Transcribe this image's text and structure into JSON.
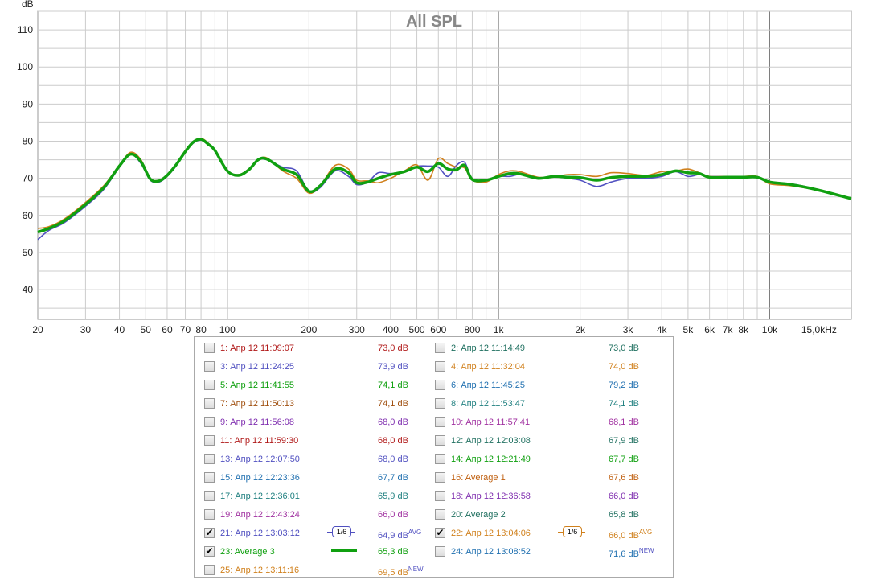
{
  "chart_data": {
    "type": "line",
    "title": "All SPL",
    "ylabel": "dB",
    "xscale": "log",
    "xlim": [
      20,
      20000
    ],
    "ylim": [
      32,
      115
    ],
    "grid": true,
    "x_ticks": [
      {
        "v": 20,
        "t": "20"
      },
      {
        "v": 30,
        "t": "30"
      },
      {
        "v": 40,
        "t": "40"
      },
      {
        "v": 50,
        "t": "50"
      },
      {
        "v": 60,
        "t": "60"
      },
      {
        "v": 70,
        "t": "70"
      },
      {
        "v": 80,
        "t": "80"
      },
      {
        "v": 100,
        "t": "100"
      },
      {
        "v": 200,
        "t": "200"
      },
      {
        "v": 300,
        "t": "300"
      },
      {
        "v": 400,
        "t": "400"
      },
      {
        "v": 500,
        "t": "500"
      },
      {
        "v": 600,
        "t": "600"
      },
      {
        "v": 800,
        "t": "800"
      },
      {
        "v": 1000,
        "t": "1k"
      },
      {
        "v": 2000,
        "t": "2k"
      },
      {
        "v": 3000,
        "t": "3k"
      },
      {
        "v": 4000,
        "t": "4k"
      },
      {
        "v": 5000,
        "t": "5k"
      },
      {
        "v": 6000,
        "t": "6k"
      },
      {
        "v": 7000,
        "t": "7k"
      },
      {
        "v": 8000,
        "t": "8k"
      },
      {
        "v": 10000,
        "t": "10k"
      },
      {
        "v": 15000,
        "t": "15,0kHz"
      }
    ],
    "y_ticks": [
      40,
      50,
      60,
      70,
      80,
      90,
      100,
      110
    ],
    "series": [
      {
        "name": "21: Апр 12 13:03:12",
        "color": "#5050c0",
        "x": [
          20,
          22,
          25,
          30,
          35,
          40,
          44,
          48,
          52,
          56,
          60,
          65,
          70,
          75,
          80,
          85,
          90,
          100,
          110,
          120,
          130,
          140,
          160,
          180,
          200,
          220,
          250,
          280,
          300,
          330,
          360,
          400,
          450,
          500,
          550,
          600,
          650,
          700,
          750,
          800,
          900,
          1000,
          1100,
          1200,
          1400,
          1600,
          1800,
          2000,
          2300,
          2600,
          3000,
          3500,
          4000,
          4500,
          5000,
          5500,
          6000,
          7000,
          8000,
          9000,
          10000,
          12000,
          15000,
          20000
        ],
        "y": [
          53.5,
          56,
          58,
          62.5,
          67,
          73,
          76.5,
          74,
          69.5,
          69,
          70.5,
          73.5,
          77,
          79.5,
          80.3,
          79,
          77.5,
          72,
          71,
          72.5,
          75,
          75,
          73,
          72,
          66.5,
          67.5,
          72,
          70.5,
          68.3,
          69,
          71.5,
          71.3,
          71.7,
          73.2,
          73.3,
          73,
          70.5,
          73.5,
          74.3,
          70,
          69.5,
          70.5,
          70.5,
          71,
          70,
          70.5,
          70,
          69.5,
          67.8,
          69,
          70,
          70,
          70.5,
          71.8,
          70.5,
          71,
          70.5,
          70.5,
          70.3,
          70.3,
          69,
          68.5,
          67,
          64.5
        ]
      },
      {
        "name": "22: Апр 12 13:04:06",
        "color": "#d0801c",
        "x": [
          20,
          22,
          25,
          30,
          35,
          40,
          44,
          48,
          52,
          56,
          60,
          65,
          70,
          75,
          80,
          85,
          90,
          100,
          110,
          120,
          130,
          140,
          160,
          180,
          200,
          220,
          250,
          280,
          300,
          330,
          360,
          400,
          450,
          500,
          550,
          600,
          650,
          700,
          750,
          800,
          900,
          1000,
          1100,
          1200,
          1400,
          1600,
          1800,
          2000,
          2300,
          2600,
          3000,
          3500,
          4000,
          4500,
          5000,
          5500,
          6000,
          7000,
          8000,
          9000,
          10000,
          12000,
          15000,
          20000
        ],
        "y": [
          56.5,
          57,
          59,
          63.5,
          68,
          73.5,
          77,
          75,
          70,
          69.5,
          71,
          74,
          77.5,
          80,
          80.8,
          79.5,
          77.5,
          72,
          71,
          72.5,
          75,
          75.5,
          72,
          70,
          66,
          68,
          73.5,
          72.5,
          69.5,
          69.3,
          68.8,
          70,
          72,
          73.6,
          69.5,
          75.3,
          74,
          73,
          72.8,
          69.5,
          69,
          71,
          72,
          71.8,
          70.3,
          70.5,
          71,
          71,
          70.5,
          71.5,
          71.3,
          70.8,
          71.8,
          72,
          72.5,
          71.5,
          70.5,
          70.5,
          70.5,
          70.5,
          68.5,
          68,
          66.8,
          64.5
        ]
      },
      {
        "name": "23: Average 3",
        "color": "#10a010",
        "x": [
          20,
          22,
          25,
          30,
          35,
          40,
          44,
          48,
          52,
          56,
          60,
          65,
          70,
          75,
          80,
          85,
          90,
          100,
          110,
          120,
          130,
          140,
          160,
          180,
          200,
          220,
          250,
          280,
          300,
          330,
          360,
          400,
          450,
          500,
          550,
          600,
          650,
          700,
          750,
          800,
          900,
          1000,
          1100,
          1200,
          1400,
          1600,
          1800,
          2000,
          2300,
          2600,
          3000,
          3500,
          4000,
          4500,
          5000,
          5500,
          6000,
          7000,
          8000,
          9000,
          10000,
          12000,
          15000,
          20000
        ],
        "y": [
          55.5,
          56.5,
          58.5,
          63,
          67.5,
          73.3,
          76.5,
          74.5,
          69.8,
          69.3,
          70.8,
          73.8,
          77.2,
          79.8,
          80.5,
          79.2,
          77.5,
          72,
          70.8,
          72.3,
          75,
          75.2,
          72.5,
          71,
          66.5,
          68,
          72.5,
          71.5,
          68.8,
          69,
          70,
          71,
          71.8,
          73,
          71.8,
          74,
          72.5,
          72.3,
          73.5,
          69.7,
          69.5,
          70.5,
          71.3,
          71.2,
          70,
          70.5,
          70.3,
          70.2,
          69.5,
          70.2,
          70.5,
          70.5,
          71,
          72,
          71.5,
          71.3,
          70.3,
          70.3,
          70.3,
          70.3,
          69,
          68.3,
          66.9,
          64.5
        ]
      }
    ]
  },
  "legend": {
    "items": [
      {
        "name": "1: Апр 12 11:09:07",
        "value": "73,0 dB",
        "color": "#b01818",
        "checked": false,
        "badge": "",
        "symbol": ""
      },
      {
        "name": "2: Апр 12 11:14:49",
        "value": "73,0 dB",
        "color": "#207060",
        "checked": false,
        "badge": "",
        "symbol": ""
      },
      {
        "name": "3: Апр 12 11:24:25",
        "value": "73,9 dB",
        "color": "#5050c0",
        "checked": false,
        "badge": "",
        "symbol": ""
      },
      {
        "name": "4: Апр 12 11:32:04",
        "value": "74,0 dB",
        "color": "#d0801c",
        "checked": false,
        "badge": "",
        "symbol": ""
      },
      {
        "name": "5: Апр 12 11:41:55",
        "value": "74,1 dB",
        "color": "#10a010",
        "checked": false,
        "badge": "",
        "symbol": ""
      },
      {
        "name": "6: Апр 12 11:45:25",
        "value": "79,2 dB",
        "color": "#2070b0",
        "checked": false,
        "badge": "",
        "symbol": ""
      },
      {
        "name": "7: Апр 12 11:50:13",
        "value": "74,1 dB",
        "color": "#a05010",
        "checked": false,
        "badge": "",
        "symbol": ""
      },
      {
        "name": "8: Апр 12 11:53:47",
        "value": "74,1 dB",
        "color": "#208080",
        "checked": false,
        "badge": "",
        "symbol": ""
      },
      {
        "name": "9: Апр 12 11:56:08",
        "value": "68,0 dB",
        "color": "#8030b0",
        "checked": false,
        "badge": "",
        "symbol": ""
      },
      {
        "name": "10: Апр 12 11:57:41",
        "value": "68,1 dB",
        "color": "#a030a0",
        "checked": false,
        "badge": "",
        "symbol": ""
      },
      {
        "name": "11: Апр 12 11:59:30",
        "value": "68,0 dB",
        "color": "#b01818",
        "checked": false,
        "badge": "",
        "symbol": ""
      },
      {
        "name": "12: Апр 12 12:03:08",
        "value": "67,9 dB",
        "color": "#207060",
        "checked": false,
        "badge": "",
        "symbol": ""
      },
      {
        "name": "13: Апр 12 12:07:50",
        "value": "68,0 dB",
        "color": "#5050c0",
        "checked": false,
        "badge": "",
        "symbol": ""
      },
      {
        "name": "14: Апр 12 12:21:49",
        "value": "67,7 dB",
        "color": "#10a010",
        "checked": false,
        "badge": "",
        "symbol": ""
      },
      {
        "name": "15: Апр 12 12:23:36",
        "value": "67,7 dB",
        "color": "#2070b0",
        "checked": false,
        "badge": "",
        "symbol": ""
      },
      {
        "name": "16: Average 1",
        "value": "67,6 dB",
        "color": "#c06010",
        "checked": false,
        "badge": "",
        "symbol": ""
      },
      {
        "name": "17: Апр 12 12:36:01",
        "value": "65,9 dB",
        "color": "#208080",
        "checked": false,
        "badge": "",
        "symbol": ""
      },
      {
        "name": "18: Апр 12 12:36:58",
        "value": "66,0 dB",
        "color": "#8030b0",
        "checked": false,
        "badge": "",
        "symbol": ""
      },
      {
        "name": "19: Апр 12 12:43:24",
        "value": "66,0 dB",
        "color": "#a030a0",
        "checked": false,
        "badge": "",
        "symbol": ""
      },
      {
        "name": "20: Average 2",
        "value": "65,8 dB",
        "color": "#207060",
        "checked": false,
        "badge": "",
        "symbol": ""
      },
      {
        "name": "21: Апр 12 13:03:12",
        "value": "64,9 dB",
        "color": "#5050c0",
        "checked": true,
        "badge": "AVG",
        "symbol": "smooth",
        "symbol_text": "1/6"
      },
      {
        "name": "22: Апр 12 13:04:06",
        "value": "66,0 dB",
        "color": "#d0801c",
        "checked": true,
        "badge": "AVG",
        "symbol": "smooth",
        "symbol_text": "1/6"
      },
      {
        "name": "23: Average 3",
        "value": "65,3 dB",
        "color": "#10a010",
        "checked": true,
        "badge": "",
        "symbol": "line"
      },
      {
        "name": "24: Апр 12 13:08:52",
        "value": "71,6 dB",
        "color": "#2070b0",
        "checked": false,
        "badge": "NEW",
        "symbol": ""
      },
      {
        "name": "25: Апр 12 13:11:16",
        "value": "69,5 dB",
        "color": "#d0801c",
        "checked": false,
        "badge": "NEW",
        "symbol": ""
      }
    ]
  }
}
